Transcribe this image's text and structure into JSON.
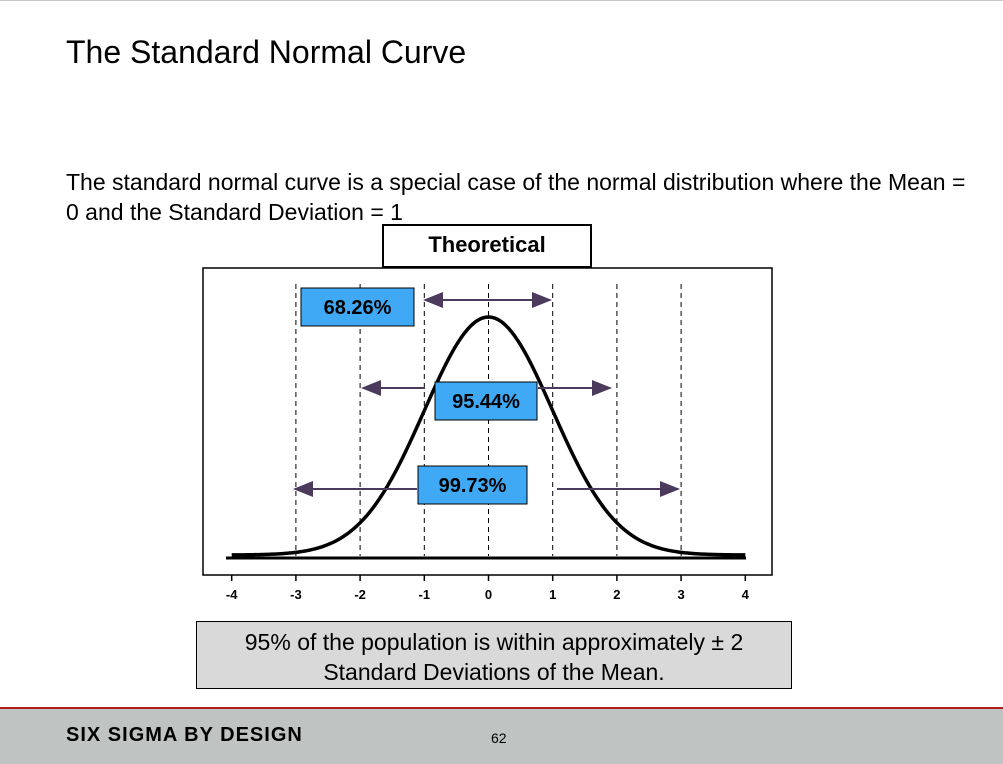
{
  "slide": {
    "title": "The Standard Normal Curve",
    "intro": "The standard normal curve is a special case of the normal distribution where the Mean = 0 and the Standard Deviation = 1",
    "theoretical_label": "Theoretical",
    "callout": "95% of the population is within approximately ± 2 Standard Deviations of the Mean.",
    "footer_brand": "SIX SIGMA BY DESIGN",
    "page_number": "62"
  },
  "chart_data": {
    "type": "line",
    "title": "",
    "xlabel": "",
    "ylabel": "",
    "xlim": [
      -4,
      4
    ],
    "x_ticks": [
      "-4",
      "-3",
      "-2",
      "-1",
      "0",
      "1",
      "2",
      "3",
      "4"
    ],
    "series": [
      {
        "name": "",
        "mean": 0,
        "sd": 1
      }
    ],
    "reference_lines": [
      -3,
      -2,
      -1,
      0,
      1,
      2,
      3
    ],
    "intervals": [
      {
        "label": "68.26%",
        "range": [
          -1,
          1
        ]
      },
      {
        "label": "95.44%",
        "range": [
          -2,
          2
        ]
      },
      {
        "label": "99.73%",
        "range": [
          -3,
          3
        ]
      }
    ],
    "colors": {
      "label_fill": "#3fa9f5",
      "arrow": "#4b3a5c",
      "curve": "#000000"
    }
  }
}
